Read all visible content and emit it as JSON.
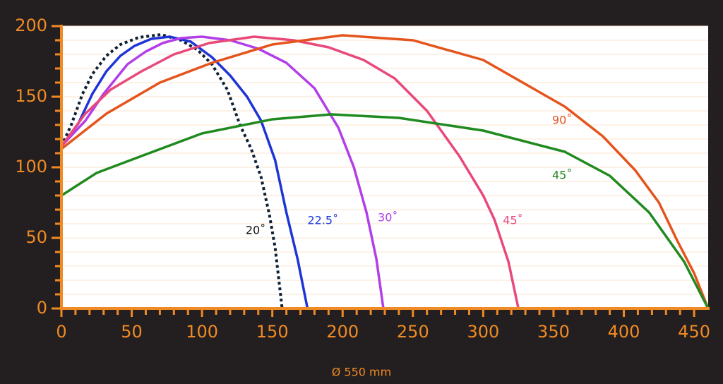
{
  "chart_data": {
    "type": "line",
    "xlabel": "Ø 550 mm",
    "xlim": [
      0,
      460
    ],
    "ylim": [
      0,
      200
    ],
    "xticks": [
      0,
      50,
      100,
      150,
      200,
      250,
      300,
      350,
      400,
      450
    ],
    "yticks": [
      0,
      50,
      100,
      150,
      200
    ],
    "xminor": [
      10,
      20,
      30,
      40,
      60,
      70,
      80,
      90,
      110,
      120,
      130,
      140,
      160,
      170,
      180,
      190,
      210,
      220,
      230,
      240,
      260,
      270,
      280,
      290,
      310,
      320,
      330,
      340,
      360,
      370,
      380,
      390,
      410,
      420,
      430,
      440
    ],
    "yminor": [
      10,
      20,
      30,
      40,
      60,
      70,
      80,
      90,
      110,
      120,
      130,
      140,
      160,
      170,
      180,
      190
    ],
    "grid": true,
    "axis_color": "#f08a24",
    "grid_color": "#fbe3cc",
    "series": [
      {
        "name": "20˚",
        "color": "#0d2035",
        "label_color": "#111111",
        "style": "dotted",
        "x": [
          0,
          7,
          15,
          22,
          32,
          42,
          55,
          71,
          85,
          97,
          107,
          118,
          127,
          135,
          142,
          148,
          152,
          157
        ],
        "values": [
          115,
          130,
          152,
          166,
          179,
          187,
          192,
          194,
          190,
          183,
          173,
          155,
          130,
          113,
          93,
          66,
          43,
          0
        ]
      },
      {
        "name": "22.5˚",
        "color": "#1d35d6",
        "label_color": "#1d35d6",
        "style": "solid",
        "x": [
          0,
          12,
          22,
          32,
          42,
          52,
          64,
          77,
          92,
          107,
          120,
          132,
          142,
          152,
          160,
          168,
          175
        ],
        "values": [
          115,
          131,
          152,
          168,
          179,
          186,
          191,
          192.5,
          189,
          178,
          165,
          150,
          133,
          105,
          68,
          35,
          0
        ]
      },
      {
        "name": "30˚",
        "color": "#b23ee8",
        "label_color": "#b23ee8",
        "style": "solid",
        "x": [
          0,
          17,
          30,
          47,
          60,
          72,
          85,
          100,
          120,
          140,
          160,
          180,
          197,
          208,
          217,
          224,
          229
        ],
        "values": [
          115,
          133,
          152,
          173,
          182,
          188,
          191.5,
          192.5,
          190,
          184,
          174,
          156,
          128,
          100,
          68,
          35,
          0
        ]
      },
      {
        "name": "45˚",
        "color": "#e8487a",
        "label_color": "#e8487a",
        "style": "solid",
        "x": [
          0,
          17,
          35,
          57,
          80,
          105,
          137,
          165,
          190,
          215,
          237,
          260,
          283,
          300,
          308,
          318,
          325
        ],
        "values": [
          115,
          138,
          155,
          168,
          180,
          188,
          192.5,
          190,
          185,
          176,
          163,
          140,
          108,
          80,
          63,
          33,
          0
        ]
      },
      {
        "name": "90˚",
        "color": "#e4541c",
        "label_color": "#e4541c",
        "style": "solid",
        "x": [
          0,
          32,
          70,
          107,
          150,
          200,
          250,
          300,
          358,
          385,
          408,
          425,
          438,
          450,
          460
        ],
        "values": [
          113,
          138,
          160,
          174,
          187,
          193.5,
          190,
          176,
          143,
          122,
          98,
          75,
          48,
          25,
          0
        ]
      },
      {
        "name": "45˚",
        "color": "#1f8a1f",
        "label_color": "#1f8a1f",
        "style": "solid",
        "x": [
          0,
          25,
          57,
          100,
          150,
          192,
          240,
          300,
          358,
          390,
          418,
          443,
          460
        ],
        "values": [
          80,
          96,
          108,
          124,
          134,
          137.5,
          135,
          126,
          111,
          94,
          68,
          33,
          0
        ]
      }
    ]
  }
}
